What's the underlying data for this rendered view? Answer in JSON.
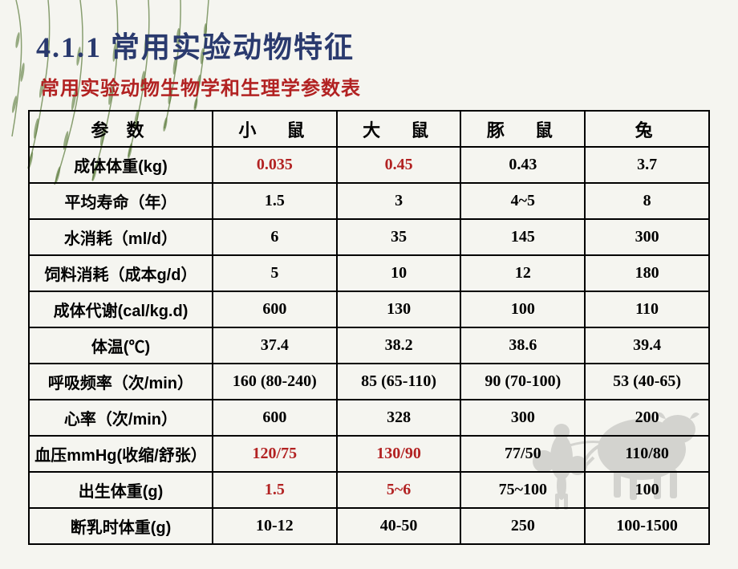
{
  "title": {
    "main": "4.1.1 常用实验动物特征",
    "main_color": "#2a3a6e",
    "sub": "常用实验动物生物学和生理学参数表",
    "sub_color": "#b22222"
  },
  "table": {
    "header_row": {
      "param": "参 数",
      "col1": "小　鼠",
      "col2": "大　鼠",
      "col3": "豚　鼠",
      "col4": "兔"
    },
    "rows": [
      {
        "param": "成体体重(kg)",
        "c1": {
          "v": "0.035",
          "hl": true
        },
        "c2": {
          "v": "0.45",
          "hl": true
        },
        "c3": {
          "v": "0.43",
          "hl": false
        },
        "c4": {
          "v": "3.7",
          "hl": false
        }
      },
      {
        "param": "平均寿命（年）",
        "c1": {
          "v": "1.5",
          "hl": false
        },
        "c2": {
          "v": "3",
          "hl": false
        },
        "c3": {
          "v": "4~5",
          "hl": false
        },
        "c4": {
          "v": "8",
          "hl": false
        }
      },
      {
        "param": "水消耗（ml/d）",
        "c1": {
          "v": "6",
          "hl": false
        },
        "c2": {
          "v": "35",
          "hl": false
        },
        "c3": {
          "v": "145",
          "hl": false
        },
        "c4": {
          "v": "300",
          "hl": false
        }
      },
      {
        "param": "饲料消耗（成本g/d）",
        "c1": {
          "v": "5",
          "hl": false
        },
        "c2": {
          "v": "10",
          "hl": false
        },
        "c3": {
          "v": "12",
          "hl": false
        },
        "c4": {
          "v": "180",
          "hl": false
        }
      },
      {
        "param": "成体代谢(cal/kg.d)",
        "c1": {
          "v": "600",
          "hl": false
        },
        "c2": {
          "v": "130",
          "hl": false
        },
        "c3": {
          "v": "100",
          "hl": false
        },
        "c4": {
          "v": "110",
          "hl": false
        }
      },
      {
        "param": "体温(℃)",
        "c1": {
          "v": "37.4",
          "hl": false
        },
        "c2": {
          "v": "38.2",
          "hl": false
        },
        "c3": {
          "v": "38.6",
          "hl": false
        },
        "c4": {
          "v": "39.4",
          "hl": false
        }
      },
      {
        "param": "呼吸频率（次/min）",
        "c1": {
          "v": "160 (80-240)",
          "hl": false
        },
        "c2": {
          "v": "85 (65-110)",
          "hl": false
        },
        "c3": {
          "v": "90 (70-100)",
          "hl": false
        },
        "c4": {
          "v": "53 (40-65)",
          "hl": false
        }
      },
      {
        "param": "心率（次/min）",
        "c1": {
          "v": "600",
          "hl": false
        },
        "c2": {
          "v": "328",
          "hl": false
        },
        "c3": {
          "v": "300",
          "hl": false
        },
        "c4": {
          "v": "200",
          "hl": false
        }
      },
      {
        "param": "血压mmHg(收缩/舒张）",
        "c1": {
          "v": "120/75",
          "hl": true
        },
        "c2": {
          "v": "130/90",
          "hl": true
        },
        "c3": {
          "v": "77/50",
          "hl": false
        },
        "c4": {
          "v": "110/80",
          "hl": false
        }
      },
      {
        "param": "出生体重(g)",
        "c1": {
          "v": "1.5",
          "hl": true
        },
        "c2": {
          "v": "5~6",
          "hl": true
        },
        "c3": {
          "v": "75~100",
          "hl": false
        },
        "c4": {
          "v": "100",
          "hl": false
        }
      },
      {
        "param": "断乳时体重(g)",
        "c1": {
          "v": "10-12",
          "hl": false
        },
        "c2": {
          "v": "40-50",
          "hl": false
        },
        "c3": {
          "v": "250",
          "hl": false
        },
        "c4": {
          "v": "100-1500",
          "hl": false
        }
      }
    ],
    "highlight_color": "#b22222",
    "border_color": "#000000",
    "text_color": "#000000"
  },
  "decorations": {
    "willow_color": "#5a7a3a",
    "ox_color": "#808080"
  }
}
